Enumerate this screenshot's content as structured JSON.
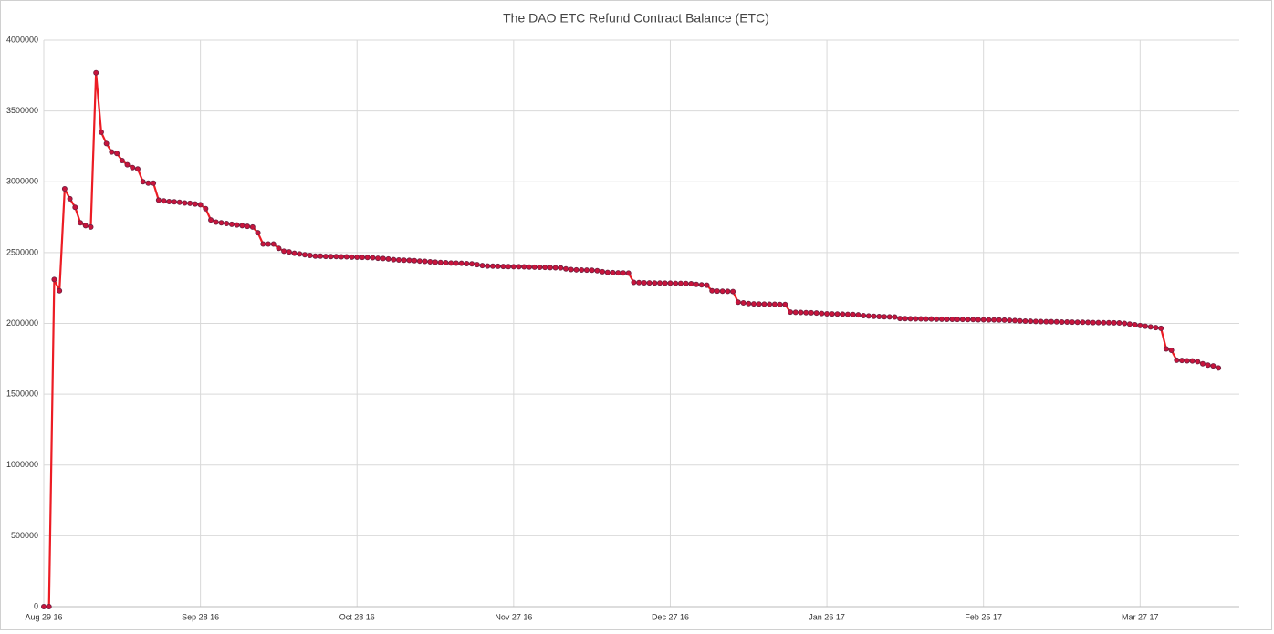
{
  "chart_data": {
    "type": "line",
    "title": "The DAO ETC Refund Contract Balance (ETC)",
    "color": "#ec1c24",
    "marker_color": "#c8143c",
    "marker_edge": "#6e2040",
    "grid": true,
    "xlim": [
      "2016-08-29",
      "2017-04-15"
    ],
    "xticks": [
      {
        "value": "2016-08-29",
        "label": "Aug 29 16"
      },
      {
        "value": "2016-09-28",
        "label": "Sep 28 16"
      },
      {
        "value": "2016-10-28",
        "label": "Oct 28 16"
      },
      {
        "value": "2016-11-27",
        "label": "Nov 27 16"
      },
      {
        "value": "2016-12-27",
        "label": "Dec 27 16"
      },
      {
        "value": "2017-01-26",
        "label": "Jan 26 17"
      },
      {
        "value": "2017-02-25",
        "label": "Feb 25 17"
      },
      {
        "value": "2017-03-27",
        "label": "Mar 27 17"
      }
    ],
    "ylim": [
      0,
      4000000
    ],
    "yticks": [
      0,
      500000,
      1000000,
      1500000,
      2000000,
      2500000,
      3000000,
      3500000,
      4000000
    ],
    "x": [
      "2016-08-29",
      "2016-08-30",
      "2016-08-31",
      "2016-09-01",
      "2016-09-02",
      "2016-09-03",
      "2016-09-04",
      "2016-09-05",
      "2016-09-06",
      "2016-09-07",
      "2016-09-08",
      "2016-09-09",
      "2016-09-10",
      "2016-09-11",
      "2016-09-12",
      "2016-09-13",
      "2016-09-14",
      "2016-09-15",
      "2016-09-16",
      "2016-09-17",
      "2016-09-18",
      "2016-09-19",
      "2016-09-20",
      "2016-09-21",
      "2016-09-22",
      "2016-09-23",
      "2016-09-24",
      "2016-09-25",
      "2016-09-26",
      "2016-09-27",
      "2016-09-28",
      "2016-09-29",
      "2016-09-30",
      "2016-10-01",
      "2016-10-02",
      "2016-10-03",
      "2016-10-04",
      "2016-10-05",
      "2016-10-06",
      "2016-10-07",
      "2016-10-08",
      "2016-10-09",
      "2016-10-10",
      "2016-10-11",
      "2016-10-12",
      "2016-10-13",
      "2016-10-14",
      "2016-10-15",
      "2016-10-16",
      "2016-10-17",
      "2016-10-18",
      "2016-10-19",
      "2016-10-20",
      "2016-10-21",
      "2016-10-22",
      "2016-10-23",
      "2016-10-24",
      "2016-10-25",
      "2016-10-26",
      "2016-10-27",
      "2016-10-28",
      "2016-10-29",
      "2016-10-30",
      "2016-10-31",
      "2016-11-01",
      "2016-11-02",
      "2016-11-03",
      "2016-11-04",
      "2016-11-05",
      "2016-11-06",
      "2016-11-07",
      "2016-11-08",
      "2016-11-09",
      "2016-11-10",
      "2016-11-11",
      "2016-11-12",
      "2016-11-13",
      "2016-11-14",
      "2016-11-15",
      "2016-11-16",
      "2016-11-17",
      "2016-11-18",
      "2016-11-19",
      "2016-11-20",
      "2016-11-21",
      "2016-11-22",
      "2016-11-23",
      "2016-11-24",
      "2016-11-25",
      "2016-11-26",
      "2016-11-27",
      "2016-11-28",
      "2016-11-29",
      "2016-11-30",
      "2016-12-01",
      "2016-12-02",
      "2016-12-03",
      "2016-12-04",
      "2016-12-05",
      "2016-12-06",
      "2016-12-07",
      "2016-12-08",
      "2016-12-09",
      "2016-12-10",
      "2016-12-11",
      "2016-12-12",
      "2016-12-13",
      "2016-12-14",
      "2016-12-15",
      "2016-12-16",
      "2016-12-17",
      "2016-12-18",
      "2016-12-19",
      "2016-12-20",
      "2016-12-21",
      "2016-12-22",
      "2016-12-23",
      "2016-12-24",
      "2016-12-25",
      "2016-12-26",
      "2016-12-27",
      "2016-12-28",
      "2016-12-29",
      "2016-12-30",
      "2016-12-31",
      "2017-01-01",
      "2017-01-02",
      "2017-01-03",
      "2017-01-04",
      "2017-01-05",
      "2017-01-06",
      "2017-01-07",
      "2017-01-08",
      "2017-01-09",
      "2017-01-10",
      "2017-01-11",
      "2017-01-12",
      "2017-01-13",
      "2017-01-14",
      "2017-01-15",
      "2017-01-16",
      "2017-01-17",
      "2017-01-18",
      "2017-01-19",
      "2017-01-20",
      "2017-01-21",
      "2017-01-22",
      "2017-01-23",
      "2017-01-24",
      "2017-01-25",
      "2017-01-26",
      "2017-01-27",
      "2017-01-28",
      "2017-01-29",
      "2017-01-30",
      "2017-01-31",
      "2017-02-01",
      "2017-02-02",
      "2017-02-03",
      "2017-02-04",
      "2017-02-05",
      "2017-02-06",
      "2017-02-07",
      "2017-02-08",
      "2017-02-09",
      "2017-02-10",
      "2017-02-11",
      "2017-02-12",
      "2017-02-13",
      "2017-02-14",
      "2017-02-15",
      "2017-02-16",
      "2017-02-17",
      "2017-02-18",
      "2017-02-19",
      "2017-02-20",
      "2017-02-21",
      "2017-02-22",
      "2017-02-23",
      "2017-02-24",
      "2017-02-25",
      "2017-02-26",
      "2017-02-27",
      "2017-02-28",
      "2017-03-01",
      "2017-03-02",
      "2017-03-03",
      "2017-03-04",
      "2017-03-05",
      "2017-03-06",
      "2017-03-07",
      "2017-03-08",
      "2017-03-09",
      "2017-03-10",
      "2017-03-11",
      "2017-03-12",
      "2017-03-13",
      "2017-03-14",
      "2017-03-15",
      "2017-03-16",
      "2017-03-17",
      "2017-03-18",
      "2017-03-19",
      "2017-03-20",
      "2017-03-21",
      "2017-03-22",
      "2017-03-23",
      "2017-03-24",
      "2017-03-25",
      "2017-03-26",
      "2017-03-27",
      "2017-03-28",
      "2017-03-29",
      "2017-03-30",
      "2017-03-31",
      "2017-04-01",
      "2017-04-02",
      "2017-04-03",
      "2017-04-04",
      "2017-04-05",
      "2017-04-06",
      "2017-04-07",
      "2017-04-08",
      "2017-04-09",
      "2017-04-10",
      "2017-04-11"
    ],
    "values": [
      0,
      0,
      2310000,
      2230000,
      2950000,
      2880000,
      2820000,
      2710000,
      2690000,
      2680000,
      3770000,
      3350000,
      3270000,
      3210000,
      3200000,
      3150000,
      3120000,
      3100000,
      3090000,
      3000000,
      2990000,
      2990000,
      2870000,
      2865000,
      2860000,
      2858000,
      2855000,
      2850000,
      2848000,
      2843000,
      2838000,
      2810000,
      2730000,
      2715000,
      2710000,
      2705000,
      2700000,
      2695000,
      2690000,
      2685000,
      2680000,
      2640000,
      2560000,
      2560000,
      2560000,
      2530000,
      2510000,
      2505000,
      2495000,
      2490000,
      2485000,
      2480000,
      2475000,
      2475000,
      2473000,
      2472000,
      2472000,
      2470000,
      2470000,
      2468000,
      2467000,
      2466000,
      2465000,
      2464000,
      2460000,
      2458000,
      2455000,
      2450000,
      2448000,
      2446000,
      2445000,
      2443000,
      2440000,
      2438000,
      2435000,
      2432000,
      2430000,
      2428000,
      2426000,
      2425000,
      2424000,
      2422000,
      2420000,
      2415000,
      2408000,
      2405000,
      2404000,
      2403000,
      2402000,
      2401000,
      2400000,
      2400000,
      2399000,
      2398000,
      2397000,
      2396000,
      2395000,
      2394000,
      2393000,
      2392000,
      2385000,
      2380000,
      2378000,
      2377000,
      2376000,
      2375000,
      2372000,
      2365000,
      2360000,
      2358000,
      2357000,
      2356000,
      2355000,
      2290000,
      2288000,
      2287000,
      2286000,
      2285000,
      2285000,
      2284000,
      2284000,
      2283000,
      2283000,
      2282000,
      2280000,
      2275000,
      2272000,
      2270000,
      2230000,
      2228000,
      2227000,
      2226000,
      2225000,
      2150000,
      2145000,
      2140000,
      2138000,
      2137000,
      2136000,
      2135000,
      2135000,
      2134000,
      2134000,
      2080000,
      2078000,
      2077000,
      2076000,
      2075000,
      2073000,
      2070000,
      2068000,
      2067000,
      2066000,
      2065000,
      2064000,
      2063000,
      2060000,
      2055000,
      2052000,
      2050000,
      2048000,
      2047000,
      2046000,
      2045000,
      2035000,
      2034000,
      2033000,
      2032000,
      2032000,
      2031000,
      2031000,
      2030000,
      2030000,
      2029000,
      2029000,
      2028000,
      2028000,
      2027000,
      2027000,
      2026000,
      2026000,
      2025000,
      2025000,
      2024000,
      2023000,
      2022000,
      2020000,
      2018000,
      2016000,
      2015000,
      2014000,
      2013000,
      2012000,
      2012000,
      2011000,
      2010000,
      2010000,
      2009000,
      2008000,
      2008000,
      2007000,
      2006000,
      2006000,
      2005000,
      2005000,
      2004000,
      2003000,
      2000000,
      1995000,
      1990000,
      1985000,
      1980000,
      1975000,
      1970000,
      1965000,
      1820000,
      1810000,
      1740000,
      1738000,
      1736000,
      1735000,
      1730000,
      1715000,
      1705000,
      1700000,
      1685000
    ]
  }
}
